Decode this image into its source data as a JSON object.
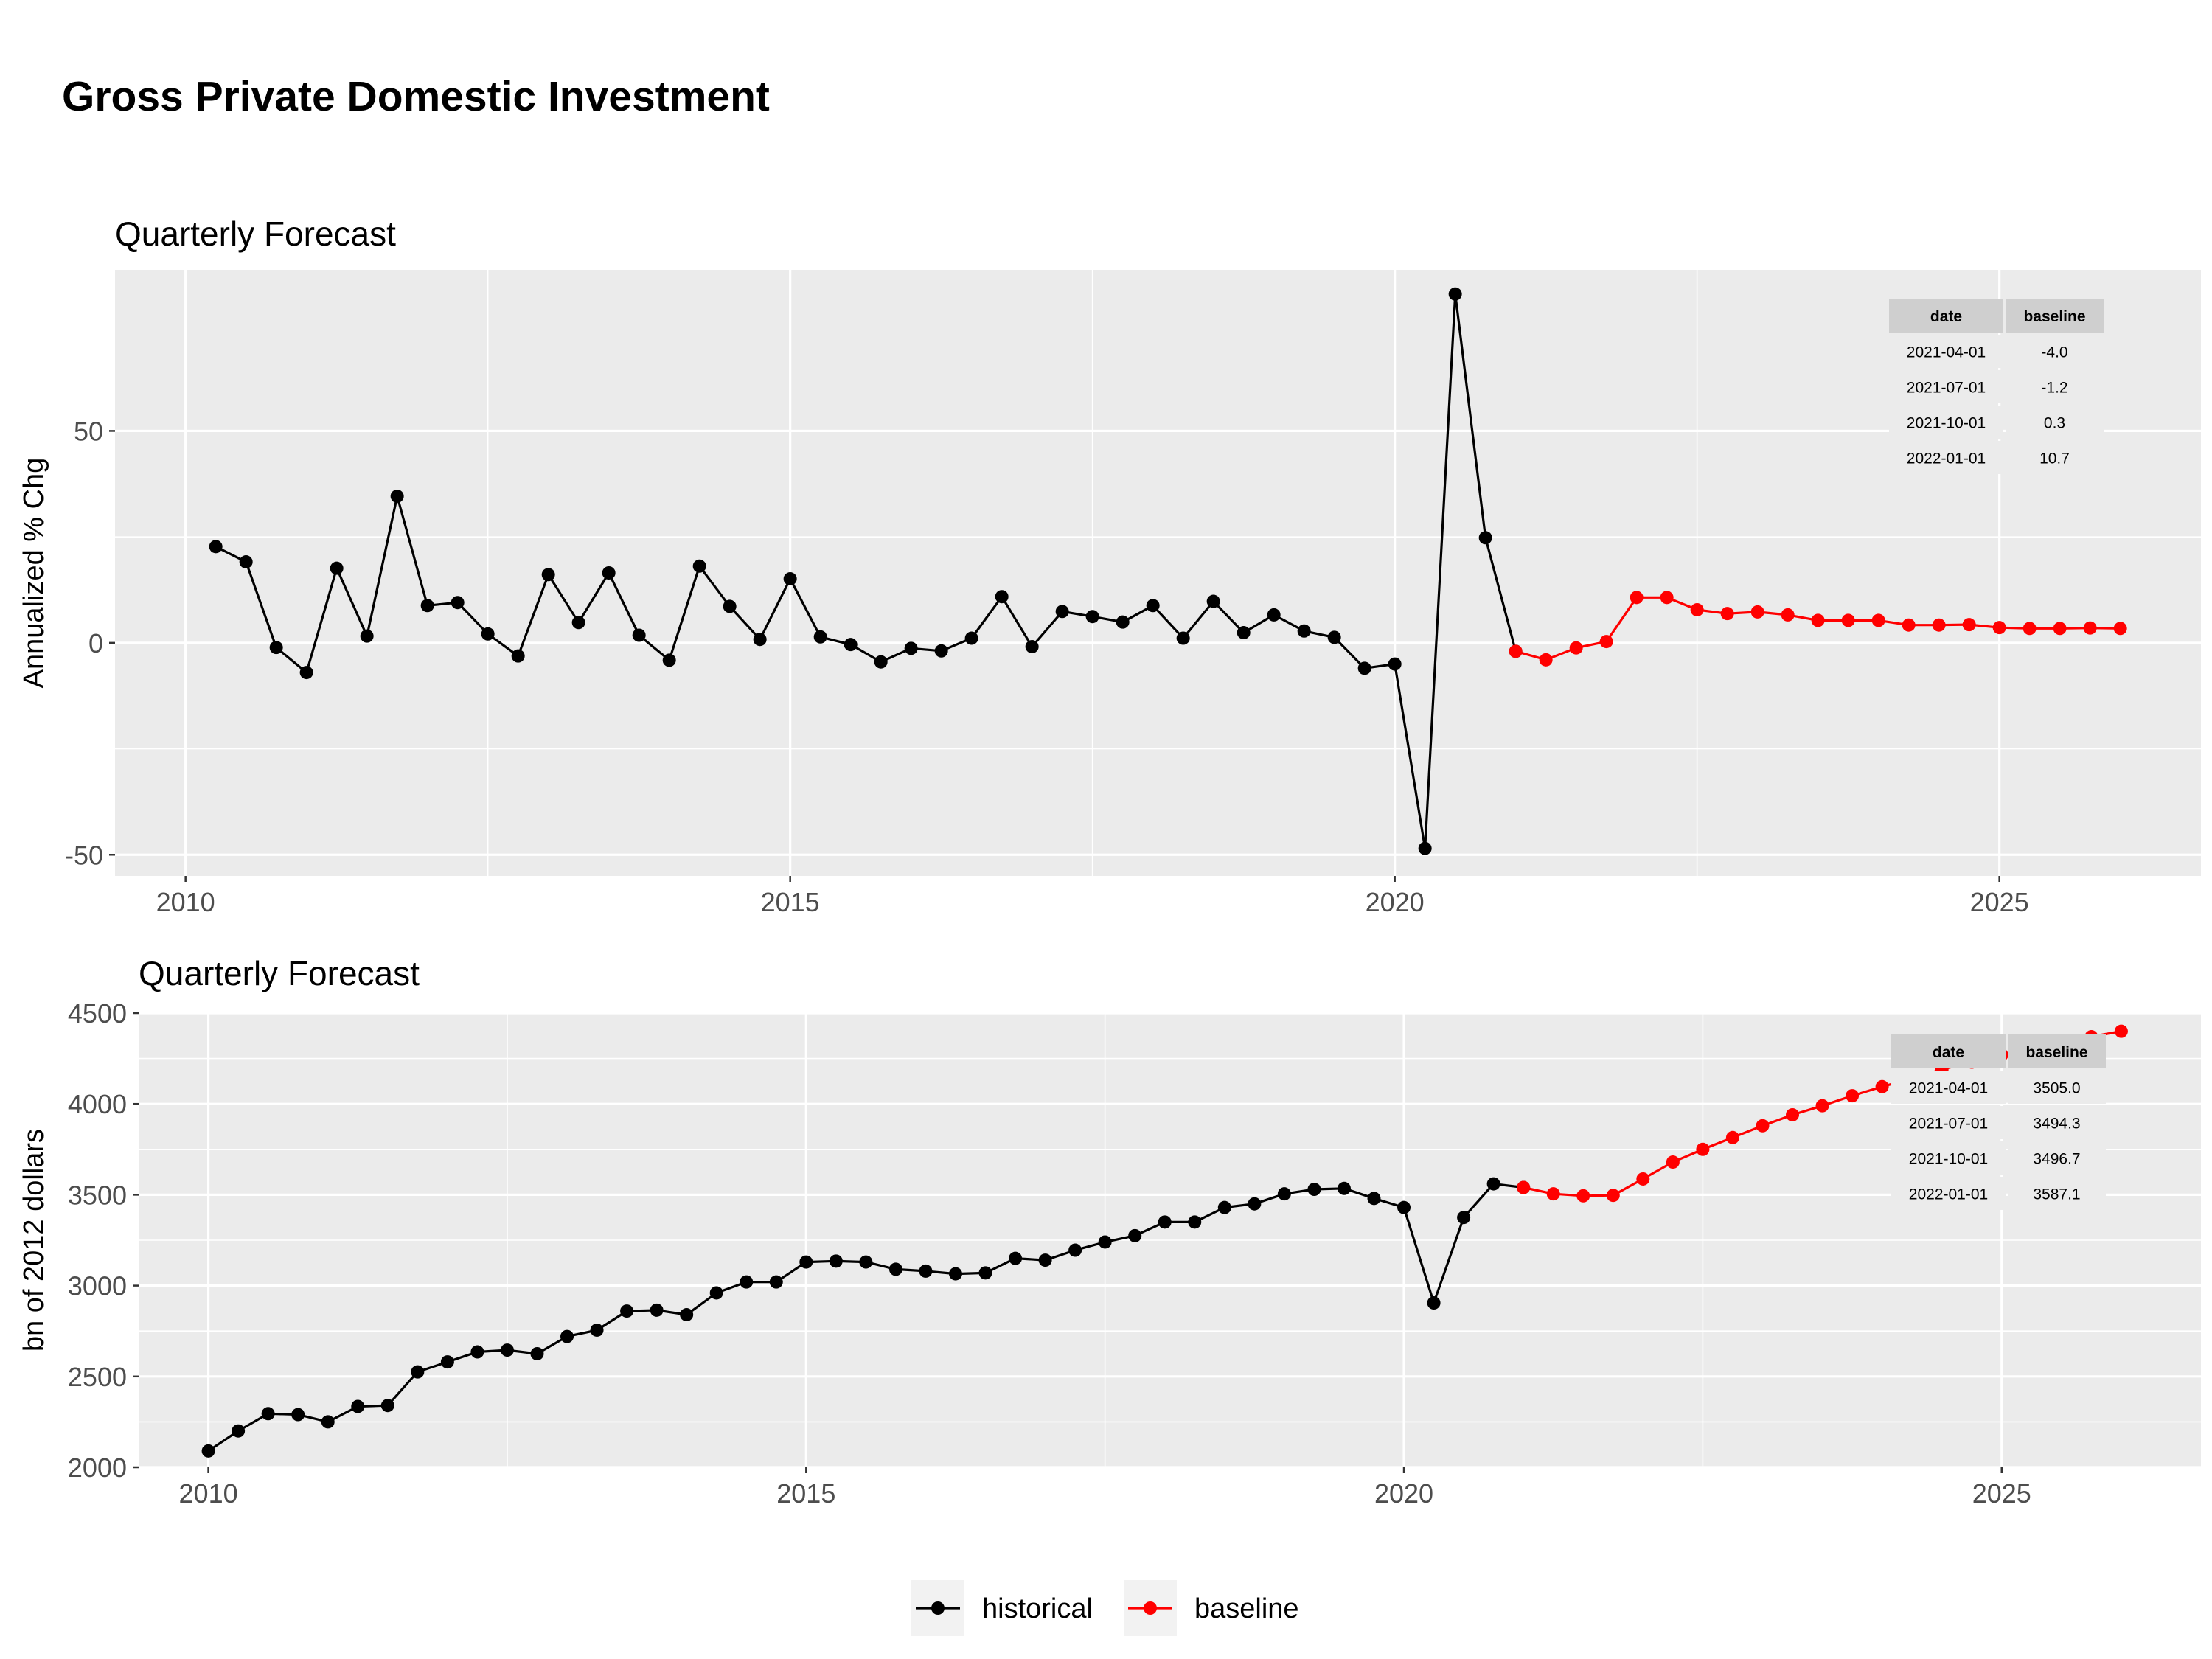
{
  "main_title": "Gross Private Domestic Investment",
  "colors": {
    "historical": "#000000",
    "baseline": "#ff0000",
    "panel_bg": "#ebebeb",
    "grid": "#ffffff",
    "table_header_bg": "#cfcfcf",
    "table_cell_bg": "#ebebeb"
  },
  "legend": {
    "items": [
      {
        "label": "historical",
        "color": "#000000"
      },
      {
        "label": "baseline",
        "color": "#ff0000"
      }
    ]
  },
  "chart_data": [
    {
      "type": "line",
      "title": "Quarterly Forecast",
      "ylabel": "Annualized % Chg",
      "xlabel": "",
      "xlim": [
        "2009-06-01",
        "2026-09-01"
      ],
      "ylim": [
        -55,
        88
      ],
      "x_ticks": [
        "2010",
        "2015",
        "2020",
        "2025"
      ],
      "y_ticks": [
        "-50",
        "0",
        "50"
      ],
      "grid": true,
      "series": [
        {
          "name": "historical",
          "points": [
            [
              "2010-04-01",
              22.7
            ],
            [
              "2010-07-01",
              19.1
            ],
            [
              "2010-10-01",
              -1.1
            ],
            [
              "2011-01-01",
              -7.0
            ],
            [
              "2011-04-01",
              17.6
            ],
            [
              "2011-07-01",
              1.6
            ],
            [
              "2011-10-01",
              34.6
            ],
            [
              "2012-01-01",
              8.8
            ],
            [
              "2012-04-01",
              9.5
            ],
            [
              "2012-07-01",
              2.1
            ],
            [
              "2012-10-01",
              -3.1
            ],
            [
              "2013-01-01",
              16.1
            ],
            [
              "2013-04-01",
              4.8
            ],
            [
              "2013-07-01",
              16.5
            ],
            [
              "2013-10-01",
              1.8
            ],
            [
              "2014-01-01",
              -4.1
            ],
            [
              "2014-04-01",
              18.1
            ],
            [
              "2014-07-01",
              8.6
            ],
            [
              "2014-10-01",
              0.8
            ],
            [
              "2015-01-01",
              15.1
            ],
            [
              "2015-04-01",
              1.4
            ],
            [
              "2015-07-01",
              -0.4
            ],
            [
              "2015-10-01",
              -4.5
            ],
            [
              "2016-01-01",
              -1.3
            ],
            [
              "2016-04-01",
              -1.9
            ],
            [
              "2016-07-01",
              1.1
            ],
            [
              "2016-10-01",
              10.9
            ],
            [
              "2017-01-01",
              -0.9
            ],
            [
              "2017-04-01",
              7.4
            ],
            [
              "2017-07-01",
              6.2
            ],
            [
              "2017-10-01",
              4.9
            ],
            [
              "2018-01-01",
              8.8
            ],
            [
              "2018-04-01",
              1.1
            ],
            [
              "2018-07-01",
              9.8
            ],
            [
              "2018-10-01",
              2.4
            ],
            [
              "2019-01-01",
              6.6
            ],
            [
              "2019-04-01",
              2.8
            ],
            [
              "2019-07-01",
              1.3
            ],
            [
              "2019-10-01",
              -6.0
            ],
            [
              "2020-01-01",
              -5.0
            ],
            [
              "2020-04-01",
              -48.5
            ],
            [
              "2020-07-01",
              82.3
            ],
            [
              "2020-10-01",
              24.8
            ],
            [
              "2021-01-01",
              -2.0
            ]
          ]
        },
        {
          "name": "baseline",
          "points": [
            [
              "2021-01-01",
              -2.0
            ],
            [
              "2021-04-01",
              -4.0
            ],
            [
              "2021-07-01",
              -1.2
            ],
            [
              "2021-10-01",
              0.3
            ],
            [
              "2022-01-01",
              10.7
            ],
            [
              "2022-04-01",
              10.7
            ],
            [
              "2022-07-01",
              7.8
            ],
            [
              "2022-10-01",
              6.9
            ],
            [
              "2023-01-01",
              7.3
            ],
            [
              "2023-04-01",
              6.6
            ],
            [
              "2023-07-01",
              5.3
            ],
            [
              "2023-10-01",
              5.3
            ],
            [
              "2024-01-01",
              5.3
            ],
            [
              "2024-04-01",
              4.2
            ],
            [
              "2024-07-01",
              4.2
            ],
            [
              "2024-10-01",
              4.3
            ],
            [
              "2025-01-01",
              3.6
            ],
            [
              "2025-04-01",
              3.4
            ],
            [
              "2025-07-01",
              3.4
            ],
            [
              "2025-10-01",
              3.5
            ],
            [
              "2026-01-01",
              3.4
            ]
          ]
        }
      ],
      "table": {
        "headers": [
          "date",
          "baseline"
        ],
        "rows": [
          [
            "2021-04-01",
            "-4.0"
          ],
          [
            "2021-07-01",
            "-1.2"
          ],
          [
            "2021-10-01",
            "0.3"
          ],
          [
            "2022-01-01",
            "10.7"
          ]
        ]
      }
    },
    {
      "type": "line",
      "title": "Quarterly Forecast",
      "ylabel": "bn of 2012 dollars",
      "xlabel": "",
      "xlim": [
        "2009-06-01",
        "2026-09-01"
      ],
      "ylim": [
        2000,
        4500
      ],
      "x_ticks": [
        "2010",
        "2015",
        "2020",
        "2025"
      ],
      "y_ticks": [
        "2000",
        "2500",
        "3000",
        "3500",
        "4000",
        "4500"
      ],
      "grid": true,
      "series": [
        {
          "name": "historical",
          "points": [
            [
              "2010-01-01",
              2090
            ],
            [
              "2010-04-01",
              2200
            ],
            [
              "2010-07-01",
              2295
            ],
            [
              "2010-10-01",
              2290
            ],
            [
              "2011-01-01",
              2250
            ],
            [
              "2011-04-01",
              2335
            ],
            [
              "2011-07-01",
              2340
            ],
            [
              "2011-10-01",
              2525
            ],
            [
              "2012-01-01",
              2580
            ],
            [
              "2012-04-01",
              2635
            ],
            [
              "2012-07-01",
              2645
            ],
            [
              "2012-10-01",
              2625
            ],
            [
              "2013-01-01",
              2720
            ],
            [
              "2013-04-01",
              2755
            ],
            [
              "2013-07-01",
              2860
            ],
            [
              "2013-10-01",
              2865
            ],
            [
              "2014-01-01",
              2840
            ],
            [
              "2014-04-01",
              2960
            ],
            [
              "2014-07-01",
              3020
            ],
            [
              "2014-10-01",
              3020
            ],
            [
              "2015-01-01",
              3130
            ],
            [
              "2015-04-01",
              3135
            ],
            [
              "2015-07-01",
              3130
            ],
            [
              "2015-10-01",
              3090
            ],
            [
              "2016-01-01",
              3080
            ],
            [
              "2016-04-01",
              3065
            ],
            [
              "2016-07-01",
              3070
            ],
            [
              "2016-10-01",
              3150
            ],
            [
              "2017-01-01",
              3140
            ],
            [
              "2017-04-01",
              3195
            ],
            [
              "2017-07-01",
              3240
            ],
            [
              "2017-10-01",
              3275
            ],
            [
              "2018-01-01",
              3350
            ],
            [
              "2018-04-01",
              3350
            ],
            [
              "2018-07-01",
              3430
            ],
            [
              "2018-10-01",
              3450
            ],
            [
              "2019-01-01",
              3505
            ],
            [
              "2019-04-01",
              3530
            ],
            [
              "2019-07-01",
              3535
            ],
            [
              "2019-10-01",
              3480
            ],
            [
              "2020-01-01",
              3430
            ],
            [
              "2020-04-01",
              2905
            ],
            [
              "2020-07-01",
              3375
            ],
            [
              "2020-10-01",
              3560
            ],
            [
              "2021-01-01",
              3540
            ]
          ]
        },
        {
          "name": "baseline",
          "points": [
            [
              "2021-01-01",
              3540
            ],
            [
              "2021-04-01",
              3505.0
            ],
            [
              "2021-07-01",
              3494.3
            ],
            [
              "2021-10-01",
              3496.7
            ],
            [
              "2022-01-01",
              3587.1
            ],
            [
              "2022-04-01",
              3680
            ],
            [
              "2022-07-01",
              3750
            ],
            [
              "2022-10-01",
              3815
            ],
            [
              "2023-01-01",
              3880
            ],
            [
              "2023-04-01",
              3940
            ],
            [
              "2023-07-01",
              3990
            ],
            [
              "2023-10-01",
              4045
            ],
            [
              "2024-01-01",
              4095
            ],
            [
              "2024-04-01",
              4140
            ],
            [
              "2024-07-01",
              4190
            ],
            [
              "2024-10-01",
              4230
            ],
            [
              "2025-01-01",
              4270
            ],
            [
              "2025-04-01",
              4305
            ],
            [
              "2025-07-01",
              4335
            ],
            [
              "2025-10-01",
              4370
            ],
            [
              "2026-01-01",
              4400
            ]
          ]
        }
      ],
      "table": {
        "headers": [
          "date",
          "baseline"
        ],
        "rows": [
          [
            "2021-04-01",
            "3505.0"
          ],
          [
            "2021-07-01",
            "3494.3"
          ],
          [
            "2021-10-01",
            "3496.7"
          ],
          [
            "2022-01-01",
            "3587.1"
          ]
        ]
      }
    }
  ]
}
